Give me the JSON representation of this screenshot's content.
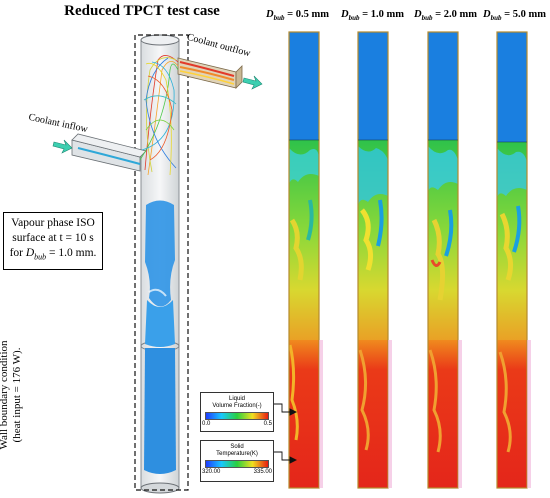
{
  "title": "Reduced TPCT test case",
  "columns": [
    {
      "prefix": "D",
      "sub": "bub",
      "value": " = 0.5 mm"
    },
    {
      "prefix": "D",
      "sub": "bub",
      "value": " = 1.0 mm"
    },
    {
      "prefix": "D",
      "sub": "bub",
      "value": " = 2.0 mm"
    },
    {
      "prefix": "D",
      "sub": "bub",
      "value": " = 5.0 mm"
    }
  ],
  "labels": {
    "coolant_outflow": "Coolant outflow",
    "coolant_inflow": "Coolant inflow"
  },
  "iso_box": {
    "line1": "Vapour phase ISO",
    "line2": "surface at t = 10 s",
    "line3_prefix": "for ",
    "line3_var": "D",
    "line3_sub": "bub",
    "line3_suffix": " = 1.0 mm."
  },
  "wall_label": {
    "line1": "Wall boundary condition",
    "line2": "(heat input = 176 W)."
  },
  "legend_liquid": {
    "title_line1": "Liquid",
    "title_line2": "Volume Fraction(-)",
    "min": "0.0",
    "max": "0.5"
  },
  "legend_solid": {
    "title_line1": "Solid",
    "title_line2": "Temperature(K)",
    "min": "320.00",
    "max": "335.00"
  },
  "colors": {
    "vapour_blue": "#1a7fe0",
    "fluid_green": "#22c63a",
    "hot_red": "#e8261c",
    "frame_gold": "#b58a2c",
    "coolant_arrow": "#3ccfb0"
  }
}
